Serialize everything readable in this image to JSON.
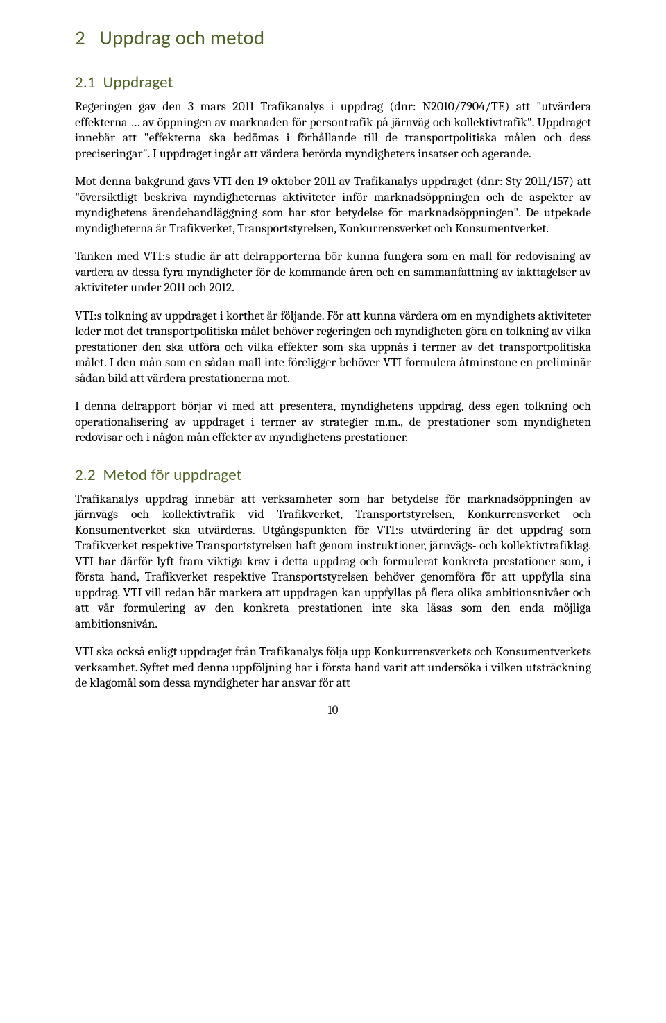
{
  "heading1": {
    "number": "2",
    "title": "Uppdrag och metod"
  },
  "section21": {
    "number": "2.1",
    "title": "Uppdraget",
    "paragraphs": [
      "Regeringen gav den 3 mars 2011 Trafikanalys i uppdrag (dnr: N2010/7904/TE) att \"utvärdera effekterna … av öppningen av marknaden för persontrafik på järnväg och kollektivtrafik\". Uppdraget innebär att \"effekterna ska bedömas i förhållande till de transportpolitiska målen och dess preciseringar\". I uppdraget ingår att värdera berörda myndigheters insatser och agerande.",
      "Mot denna bakgrund gavs VTI den 19 oktober 2011 av Trafikanalys uppdraget (dnr: Sty 2011/157) att \"översiktligt beskriva myndigheternas aktiviteter inför marknadsöppningen och de aspekter av myndighetens ärendehandläggning som har stor betydelse för marknadsöppningen\". De utpekade myndigheterna är Trafikverket, Transportstyrelsen, Konkurrensverket och Konsumentverket.",
      "Tanken med VTI:s studie är att delrapporterna bör kunna fungera som en mall för redovisning av vardera av dessa fyra myndigheter för de kommande åren och en sammanfattning av iakttagelser av aktiviteter under 2011 och 2012.",
      "VTI:s tolkning av uppdraget i korthet är följande. För att kunna värdera om en myndighets aktiviteter leder mot det transportpolitiska målet behöver regeringen och myndigheten göra en tolkning av vilka prestationer den ska utföra och vilka effekter som ska uppnås i termer av det transportpolitiska målet. I den mån som en sådan mall inte föreligger behöver VTI formulera åtminstone en preliminär sådan bild att värdera prestationerna mot.",
      "I denna delrapport börjar vi med att presentera, myndighetens uppdrag, dess egen tolkning och operationalisering av uppdraget i termer av strategier m.m., de prestationer som myndigheten redovisar och i någon mån effekter av myndighetens prestationer."
    ]
  },
  "section22": {
    "number": "2.2",
    "title": "Metod för uppdraget",
    "paragraphs": [
      "Trafikanalys uppdrag innebär att verksamheter som har betydelse för marknadsöppningen av järnvägs och kollektivtrafik vid Trafikverket, Transportstyrelsen, Konkurrensverket och Konsumentverket ska utvärderas. Utgångspunkten för VTI:s utvärdering är det uppdrag som Trafikverket respektive Transportstyrelsen haft genom instruktioner, järnvägs- och kollektivtrafiklag. VTI har därför lyft fram viktiga krav i detta uppdrag och formulerat konkreta prestationer som, i första hand, Trafikverket respektive Transportstyrelsen behöver genomföra för att uppfylla sina uppdrag. VTI vill redan här markera att uppdragen kan uppfyllas på flera olika ambitionsnivåer och att vår formulering av den konkreta prestationen inte ska läsas som den enda möjliga ambitionsnivån.",
      "VTI ska också enligt uppdraget från Trafikanalys följa upp Konkurrensverkets och Konsumentverkets verksamhet. Syftet med denna uppföljning har i första hand varit att undersöka i vilken utsträckning de klagomål som dessa myndigheter har ansvar för att"
    ]
  },
  "pageNumber": "10",
  "colors": {
    "heading": "#4f6228",
    "text": "#000000",
    "background": "#ffffff",
    "rule": "#000000"
  },
  "typography": {
    "heading_font": "Calibri",
    "body_font": "Cambria",
    "h1_size_pt": 22,
    "h2_size_pt": 17,
    "body_size_pt": 13
  }
}
